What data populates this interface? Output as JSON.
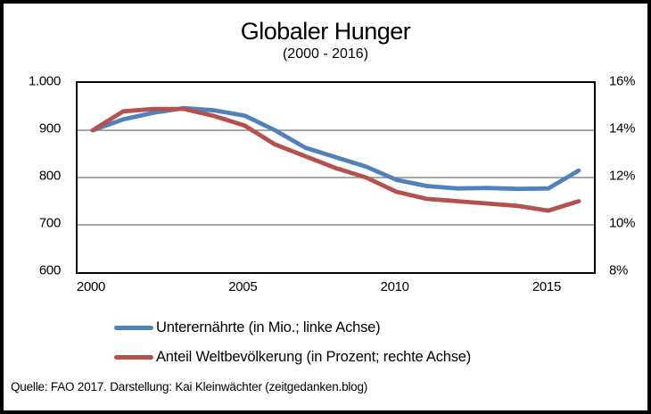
{
  "title": "Globaler Hunger",
  "subtitle": "(2000 - 2016)",
  "footer": "Quelle: FAO 2017. Darstellung: Kai Kleinwächter (zeitgedanken.blog)",
  "colors": {
    "line_blue": "#4F81BD",
    "line_red": "#B5504C",
    "gridline": "#8C8C8C",
    "plot_border": "#000000"
  },
  "chart_data": {
    "type": "line",
    "title": "Globaler Hunger",
    "subtitle": "(2000 - 2016)",
    "x": [
      2000,
      2001,
      2002,
      2003,
      2004,
      2005,
      2006,
      2007,
      2008,
      2009,
      2010,
      2011,
      2012,
      2013,
      2014,
      2015,
      2016
    ],
    "series": [
      {
        "name": "Unterernährte (in Mio.; linke Achse)",
        "axis": "left",
        "color": "#4F81BD",
        "values": [
          900,
          923,
          937,
          947,
          942,
          931,
          900,
          863,
          843,
          823,
          795,
          782,
          777,
          778,
          776,
          777,
          815
        ]
      },
      {
        "name": "Anteil Weltbevölkerung (in Prozent; rechte Achse)",
        "axis": "right",
        "color": "#B5504C",
        "values": [
          14.0,
          14.8,
          14.9,
          14.9,
          14.6,
          14.2,
          13.4,
          12.9,
          12.4,
          12.0,
          11.4,
          11.1,
          11.0,
          10.9,
          10.8,
          10.6,
          11.0
        ]
      }
    ],
    "left_axis": {
      "min": 600,
      "max": 1000,
      "tick_values": [
        1000,
        900,
        800,
        700,
        600
      ],
      "tick_labels": [
        "1.000",
        "900",
        "800",
        "700",
        "600"
      ]
    },
    "right_axis": {
      "min": 8,
      "max": 16,
      "tick_values": [
        16,
        14,
        12,
        10,
        8
      ],
      "tick_labels": [
        "16%",
        "14%",
        "12%",
        "10%",
        "8%"
      ]
    },
    "x_axis": {
      "tick_years": [
        2000,
        2005,
        2010,
        2015
      ],
      "tick_labels": [
        "2000",
        "2005",
        "2010",
        "2015"
      ]
    },
    "grid": "horizontal",
    "legend_position": "bottom"
  }
}
